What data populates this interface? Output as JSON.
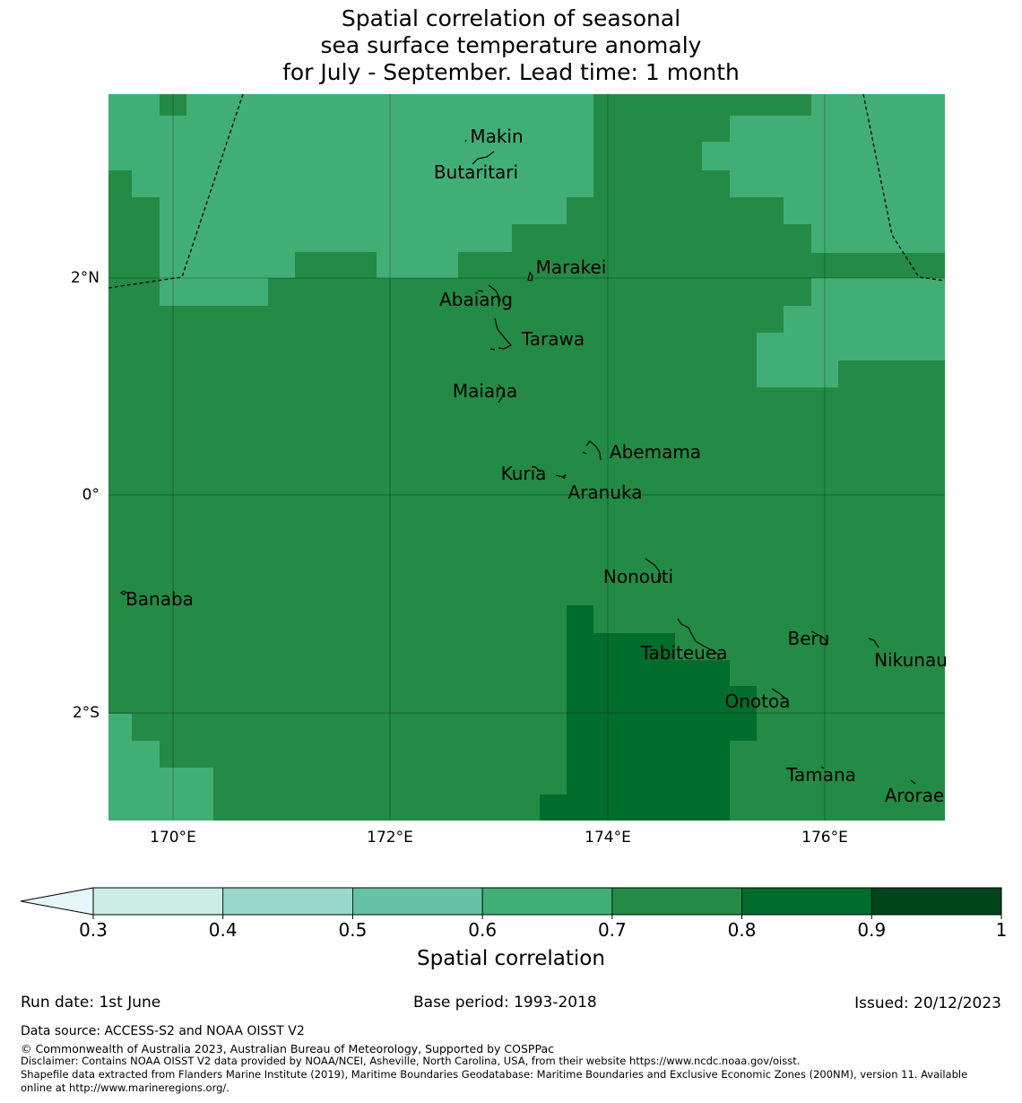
{
  "title": {
    "line1": "Spatial correlation of seasonal",
    "line2": "sea surface temperature anomaly",
    "line3": "for July - September. Lead time: 1 month"
  },
  "map": {
    "lat_labels": [
      "2°N",
      "0°",
      "2°S"
    ],
    "lon_labels": [
      "170°E",
      "172°E",
      "174°E",
      "176°E"
    ],
    "islands": [
      "Makin",
      "Butaritari",
      "Marakei",
      "Abaiang",
      "Tarawa",
      "Maiana",
      "Abemama",
      "Kuria",
      "Aranuka",
      "Nonouti",
      "Banaba",
      "Tabiteuea",
      "Beru",
      "Nikunau",
      "Onotoa",
      "Tamana",
      "Arorae"
    ]
  },
  "colorbar": {
    "label": "Spatial correlation",
    "ticks": [
      "0.3",
      "0.4",
      "0.5",
      "0.6",
      "0.7",
      "0.8",
      "0.9",
      "1"
    ],
    "colors": [
      "#ccece6",
      "#99d8c9",
      "#66c2a4",
      "#41ae76",
      "#238b45",
      "#006d2c",
      "#00441b"
    ],
    "under_color": "#e5f5f9"
  },
  "footer": {
    "run_date": "Run date: 1st June",
    "base_period": "Base period: 1993-2018",
    "issued": "Issued: 20/12/2023",
    "data_source": "Data source: ACCESS-S2 and NOAA OISST V2",
    "copyright": "© Commonwealth of Australia 2023, Australian Bureau of Meteorology, Supported by COSPPac",
    "disclaimer": "Disclaimer: Contains NOAA OISST V2 data provided by NOAA/NCEI, Asheville, North Carolina, USA, from their website https://www.ncdc.noaa.gov/oisst.",
    "shapefile_line1": "Shapefile data extracted from Flanders Marine Institute (2019), Maritime Boundaries Geodatabase: Maritime Boundaries and Exclusive Economic Zones (200NM), version 11. Available",
    "shapefile_line2": "online at http://www.marineregions.org/."
  }
}
